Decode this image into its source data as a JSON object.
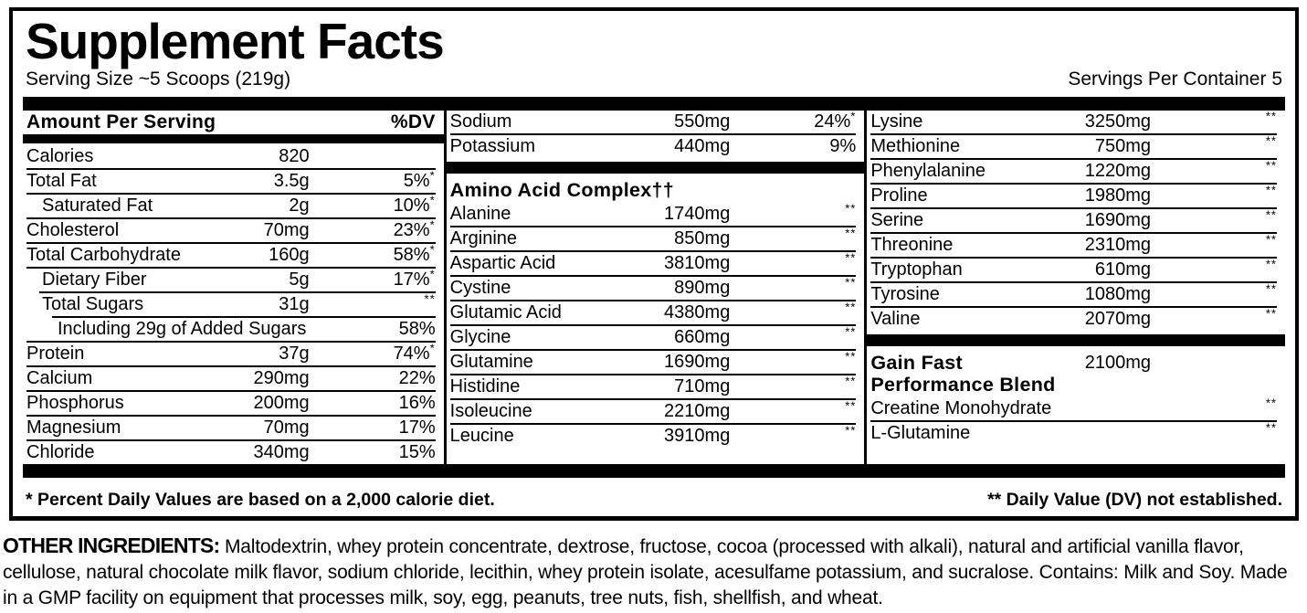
{
  "header": {
    "title": "Supplement Facts",
    "serving_size": "Serving Size ~5 Scoops (219g)",
    "servings_per_container": "Servings Per Container 5"
  },
  "left_column": {
    "header": {
      "label": "Amount Per Serving",
      "dv_label": "%DV"
    },
    "rows": [
      {
        "name": "Calories",
        "amount": "820",
        "dv": "",
        "sup": "",
        "indent": 0
      },
      {
        "name": "Total Fat",
        "amount": "3.5g",
        "dv": "5%",
        "sup": "*",
        "indent": 0
      },
      {
        "name": "Saturated Fat",
        "amount": "2g",
        "dv": "10%",
        "sup": "*",
        "indent": 1
      },
      {
        "name": "Cholesterol",
        "amount": "70mg",
        "dv": "23%",
        "sup": "*",
        "indent": 0
      },
      {
        "name": "Total Carbohydrate",
        "amount": "160g",
        "dv": "58%",
        "sup": "*",
        "indent": 0
      },
      {
        "name": "Dietary Fiber",
        "amount": "5g",
        "dv": "17%",
        "sup": "*",
        "indent": 1
      },
      {
        "name": "Total Sugars",
        "amount": "31g",
        "dv": "",
        "sup": "**",
        "indent": 1
      },
      {
        "name": "Including 29g of Added Sugars",
        "amount": "",
        "dv": "58%",
        "sup": "",
        "indent": 2
      },
      {
        "name": "Protein",
        "amount": "37g",
        "dv": "74%",
        "sup": "*",
        "indent": 0
      },
      {
        "name": "Calcium",
        "amount": "290mg",
        "dv": "22%",
        "sup": "",
        "indent": 0
      },
      {
        "name": "Phosphorus",
        "amount": "200mg",
        "dv": "16%",
        "sup": "",
        "indent": 0
      },
      {
        "name": "Magnesium",
        "amount": "70mg",
        "dv": "17%",
        "sup": "",
        "indent": 0
      },
      {
        "name": "Chloride",
        "amount": "340mg",
        "dv": "15%",
        "sup": "",
        "indent": 0
      }
    ]
  },
  "middle_column": {
    "rows": [
      {
        "name": "Sodium",
        "amount": "550mg",
        "dv": "24%",
        "sup": "*",
        "indent": 0
      },
      {
        "name": "Potassium",
        "amount": "440mg",
        "dv": "9%",
        "sup": "",
        "indent": 0
      },
      {
        "type": "bar"
      },
      {
        "type": "section",
        "name": "Amino Acid Complex††"
      },
      {
        "name": "Alanine",
        "amount": "1740mg",
        "dv": "",
        "sup": "**",
        "indent": 0
      },
      {
        "name": "Arginine",
        "amount": "850mg",
        "dv": "",
        "sup": "**",
        "indent": 0
      },
      {
        "name": "Aspartic Acid",
        "amount": "3810mg",
        "dv": "",
        "sup": "**",
        "indent": 0
      },
      {
        "name": "Cystine",
        "amount": "890mg",
        "dv": "",
        "sup": "**",
        "indent": 0
      },
      {
        "name": "Glutamic Acid",
        "amount": "4380mg",
        "dv": "",
        "sup": "**",
        "indent": 0
      },
      {
        "name": "Glycine",
        "amount": "660mg",
        "dv": "",
        "sup": "**",
        "indent": 0
      },
      {
        "name": "Glutamine",
        "amount": "1690mg",
        "dv": "",
        "sup": "**",
        "indent": 0
      },
      {
        "name": "Histidine",
        "amount": "710mg",
        "dv": "",
        "sup": "**",
        "indent": 0
      },
      {
        "name": "Isoleucine",
        "amount": "2210mg",
        "dv": "",
        "sup": "**",
        "indent": 0
      },
      {
        "name": "Leucine",
        "amount": "3910mg",
        "dv": "",
        "sup": "**",
        "indent": 0
      }
    ]
  },
  "right_column": {
    "rows": [
      {
        "name": "Lysine",
        "amount": "3250mg",
        "dv": "",
        "sup": "**",
        "indent": 0
      },
      {
        "name": "Methionine",
        "amount": "750mg",
        "dv": "",
        "sup": "**",
        "indent": 0
      },
      {
        "name": "Phenylalanine",
        "amount": "1220mg",
        "dv": "",
        "sup": "**",
        "indent": 0
      },
      {
        "name": "Proline",
        "amount": "1980mg",
        "dv": "",
        "sup": "**",
        "indent": 0
      },
      {
        "name": "Serine",
        "amount": "1690mg",
        "dv": "",
        "sup": "**",
        "indent": 0
      },
      {
        "name": "Threonine",
        "amount": "2310mg",
        "dv": "",
        "sup": "**",
        "indent": 0
      },
      {
        "name": "Tryptophan",
        "amount": "610mg",
        "dv": "",
        "sup": "**",
        "indent": 0
      },
      {
        "name": "Tyrosine",
        "amount": "1080mg",
        "dv": "",
        "sup": "**",
        "indent": 0
      },
      {
        "name": "Valine",
        "amount": "2070mg",
        "dv": "",
        "sup": "**",
        "indent": 0
      },
      {
        "type": "bar"
      },
      {
        "type": "blend",
        "name": "Gain Fast\nPerformance Blend",
        "amount": "2100mg",
        "dv": "",
        "sup": ""
      },
      {
        "name": "Creatine Monohydrate",
        "amount": "",
        "dv": "",
        "sup": "**",
        "indent": 0
      },
      {
        "name": "L-Glutamine",
        "amount": "",
        "dv": "",
        "sup": "**",
        "indent": 0
      }
    ]
  },
  "footnotes": {
    "daily_value": "* Percent Daily Values are based on a 2,000 calorie diet.",
    "not_established": "** Daily Value (DV) not established."
  },
  "other_ingredients": {
    "label": "OTHER INGREDIENTS:",
    "text": " Maltodextrin, whey protein concentrate, dextrose, fructose, cocoa (processed with alkali), natural and artificial vanilla flavor, cellulose, natural chocolate milk flavor, sodium chloride, lecithin, whey protein isolate, acesulfame potassium, and sucralose. Contains: Milk and Soy. Made in a GMP facility on equipment that processes milk, soy, egg, peanuts, tree nuts, fish, shellfish, and wheat."
  }
}
